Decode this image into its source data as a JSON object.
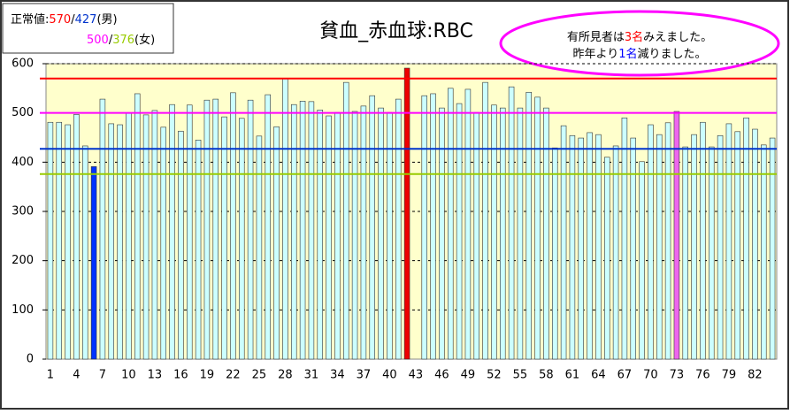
{
  "chart_data": {
    "type": "bar",
    "title": "貧血_赤血球:RBC",
    "categories": [
      "1",
      null,
      null,
      "4",
      null,
      null,
      "7",
      null,
      null,
      "10",
      null,
      null,
      "13",
      null,
      null,
      "16",
      null,
      null,
      "19",
      null,
      null,
      "22",
      null,
      null,
      "25",
      null,
      null,
      "28",
      null,
      null,
      "31",
      null,
      null,
      "34",
      null,
      null,
      "37",
      null,
      null,
      "40",
      null,
      null,
      "43",
      null,
      null,
      "46",
      null,
      null,
      "49",
      null,
      null,
      "52",
      null,
      null,
      "55",
      null,
      null,
      "58",
      null,
      null,
      "61",
      null,
      null,
      "64",
      null,
      null,
      "67",
      null,
      null,
      "70",
      null,
      null,
      "73",
      null,
      null,
      "76",
      null,
      null,
      "79",
      null,
      null,
      "82",
      null,
      null
    ],
    "values": [
      481,
      481,
      476,
      497,
      433,
      391,
      528,
      478,
      476,
      499,
      539,
      496,
      505,
      471,
      517,
      463,
      516,
      445,
      526,
      528,
      492,
      541,
      489,
      526,
      453,
      537,
      472,
      569,
      517,
      524,
      523,
      506,
      494,
      501,
      562,
      503,
      514,
      535,
      510,
      501,
      528,
      591,
      null,
      535,
      539,
      510,
      550,
      519,
      548,
      501,
      562,
      516,
      510,
      553,
      510,
      542,
      532,
      510,
      429,
      474,
      454,
      449,
      460,
      456,
      410,
      433,
      490,
      449,
      401,
      476,
      456,
      480,
      503,
      431,
      456,
      481,
      431,
      454,
      478,
      462,
      490,
      467,
      435,
      449
    ],
    "color": "#ccffff",
    "colors": [
      "#ccffff",
      "#ccffff",
      "#ccffff",
      "#ccffff",
      "#ccffff",
      "#0033ff",
      "#ccffff",
      "#ccffff",
      "#ccffff",
      "#ccffff",
      "#ccffff",
      "#ccffff",
      "#ccffff",
      "#ccffff",
      "#ccffff",
      "#ccffff",
      "#ccffff",
      "#ccffff",
      "#ccffff",
      "#ccffff",
      "#ccffff",
      "#ccffff",
      "#ccffff",
      "#ccffff",
      "#ccffff",
      "#ccffff",
      "#ccffff",
      "#ccffff",
      "#ccffff",
      "#ccffff",
      "#ccffff",
      "#ccffff",
      "#ccffff",
      "#ccffff",
      "#ccffff",
      "#ccffff",
      "#ccffff",
      "#ccffff",
      "#ccffff",
      "#ccffff",
      "#ccffff",
      "#ee0000",
      "#ccffff",
      "#ccffff",
      "#ccffff",
      "#ccffff",
      "#ccffff",
      "#ccffff",
      "#ccffff",
      "#ccffff",
      "#ccffff",
      "#ccffff",
      "#ccffff",
      "#ccffff",
      "#ccffff",
      "#ccffff",
      "#ccffff",
      "#ccffff",
      "#ccffff",
      "#ccffff",
      "#ccffff",
      "#ccffff",
      "#ccffff",
      "#ccffff",
      "#ccffff",
      "#ccffff",
      "#ccffff",
      "#ccffff",
      "#ccffff",
      "#ccffff",
      "#ccffff",
      "#ccffff",
      "#ee66ee",
      "#ccffff",
      "#ccffff",
      "#ccffff",
      "#ccffff",
      "#ccffff",
      "#ccffff",
      "#ccffff",
      "#ccffff",
      "#ccffff",
      "#ccffff",
      "#ccffff"
    ],
    "ylim": [
      0,
      600
    ],
    "yticks": [
      0,
      100,
      200,
      300,
      400,
      500,
      600
    ],
    "grid": true,
    "reference_lines": [
      {
        "value": 570,
        "color": "#ff0000"
      },
      {
        "value": 427,
        "color": "#0033cc"
      },
      {
        "value": 500,
        "color": "#ff00ff"
      },
      {
        "value": 376,
        "color": "#99cc00"
      }
    ],
    "legend_box": {
      "prefix": "正常値:",
      "sep": "/",
      "male": "(男)",
      "female": "(女)"
    },
    "callout": {
      "lines": [
        {
          "before": "有所見者は",
          "highlight": "3名",
          "after": "みえました。",
          "color": "#ff0000"
        },
        {
          "before": "昨年より",
          "highlight": "1名",
          "after": "減りました。",
          "color": "#0000ff"
        }
      ]
    }
  }
}
